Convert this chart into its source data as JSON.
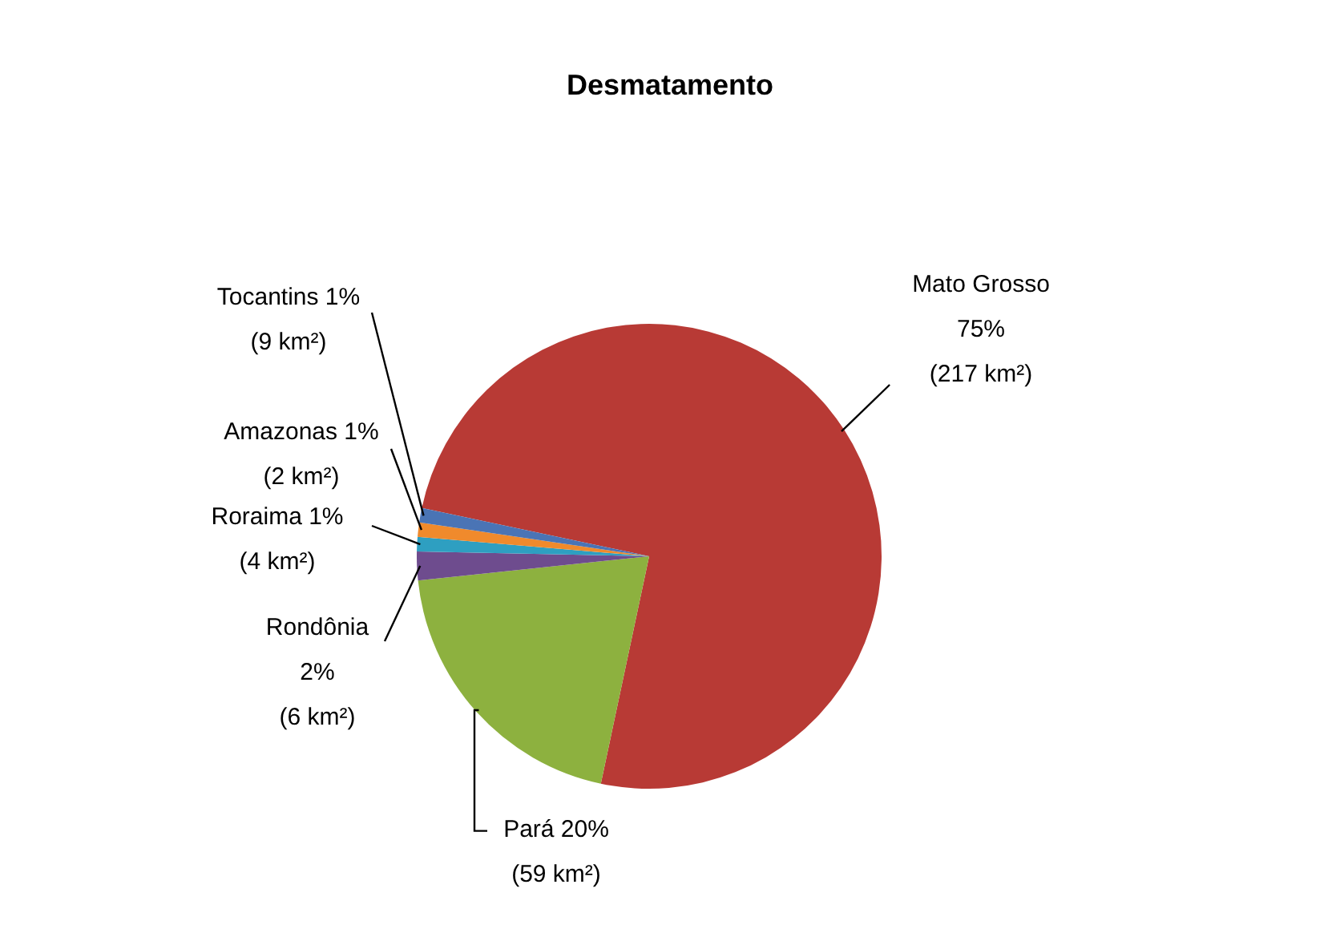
{
  "chart_data": {
    "type": "pie",
    "title": "Desmatamento",
    "categories": [
      "Mato Grosso",
      "Pará",
      "Rondônia",
      "Roraima",
      "Amazonas",
      "Tocantins"
    ],
    "values": [
      75,
      20,
      2,
      1,
      1,
      1
    ],
    "value_labels": [
      "75%\n(217 km²)",
      "20%\n(59 km²)",
      "2%\n(6 km²)",
      "1%\n(4 km²)",
      "1%\n(2 km²)",
      "1%\n(9 km²)"
    ],
    "colors": [
      "#b83a35",
      "#8db13f",
      "#6e4c8e",
      "#2e9fc1",
      "#f08a2c",
      "#4a74b5"
    ],
    "legend": false
  }
}
